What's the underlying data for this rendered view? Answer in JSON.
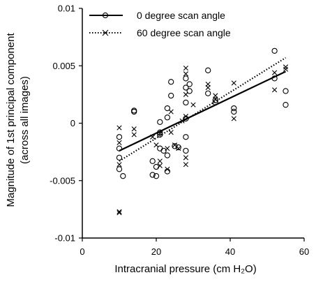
{
  "chart_data": {
    "type": "scatter",
    "xlabel": "Intracranial pressure (cm H₂O)",
    "ylabel": "Magnitude of 1st principal component",
    "ylabel2": "(across all images)",
    "xlim": [
      0,
      60
    ],
    "ylim": [
      -0.01,
      0.01
    ],
    "xticks": [
      0,
      20,
      40,
      60
    ],
    "yticks": [
      -0.01,
      -0.005,
      0,
      0.005,
      0.01
    ],
    "ytick_labels": [
      "-0.01",
      "-0.005",
      "0",
      "0.005",
      "0.01"
    ],
    "legend_position": "top-left",
    "grid": false,
    "series": [
      {
        "name": "0 degree scan angle",
        "marker": "circle",
        "line_style": "solid",
        "trendline": [
          [
            10,
            -0.0024
          ],
          [
            55,
            0.0045
          ]
        ],
        "points": [
          [
            10,
            -0.0012
          ],
          [
            10,
            -0.0022
          ],
          [
            10,
            -0.003
          ],
          [
            10,
            -0.004
          ],
          [
            11,
            -0.0046
          ],
          [
            14,
            0.0011
          ],
          [
            14,
            0.001
          ],
          [
            19,
            -0.0033
          ],
          [
            19,
            -0.0045
          ],
          [
            20,
            -0.0038
          ],
          [
            21,
            -0.001
          ],
          [
            21,
            -0.0022
          ],
          [
            21,
            0.0001
          ],
          [
            21,
            -0.0008
          ],
          [
            20,
            -0.0046
          ],
          [
            22,
            -0.0024
          ],
          [
            23,
            0.0005
          ],
          [
            23,
            0.0013
          ],
          [
            24,
            0.0024
          ],
          [
            24,
            0.0036
          ],
          [
            23,
            -0.0042
          ],
          [
            23,
            -0.0028
          ],
          [
            25,
            -0.002
          ],
          [
            26,
            -0.0021
          ],
          [
            28,
            0.0039
          ],
          [
            28,
            0.0031
          ],
          [
            28,
            0.0018
          ],
          [
            28,
            -0.0012
          ],
          [
            28,
            -0.0024
          ],
          [
            28,
            0.0004
          ],
          [
            29,
            0.0028
          ],
          [
            29,
            0.0034
          ],
          [
            34,
            0.0046
          ],
          [
            34,
            0.0026
          ],
          [
            36,
            0.002
          ],
          [
            36,
            0.0018
          ],
          [
            41,
            0.001
          ],
          [
            41,
            0.0013
          ],
          [
            52,
            0.0063
          ],
          [
            52,
            0.0039
          ],
          [
            55,
            0.0028
          ],
          [
            55,
            0.0016
          ]
        ]
      },
      {
        "name": "60 degree scan angle",
        "marker": "x",
        "line_style": "dotted",
        "trendline": [
          [
            10,
            -0.0033
          ],
          [
            55,
            0.0057
          ]
        ],
        "points": [
          [
            10,
            -0.0004
          ],
          [
            10,
            -0.0017
          ],
          [
            10,
            -0.0078
          ],
          [
            10,
            -0.0077
          ],
          [
            10,
            -0.0036
          ],
          [
            14,
            -0.0005
          ],
          [
            14,
            -0.001
          ],
          [
            19,
            -0.0012
          ],
          [
            20,
            -0.0019
          ],
          [
            21,
            -0.0009
          ],
          [
            21,
            -0.0033
          ],
          [
            21,
            -0.0037
          ],
          [
            23,
            -0.0022
          ],
          [
            23,
            -0.004
          ],
          [
            24,
            -0.0008
          ],
          [
            24,
            0.001
          ],
          [
            25,
            -0.0019
          ],
          [
            26,
            -0.0022
          ],
          [
            27,
            0.0002
          ],
          [
            28,
            0.0048
          ],
          [
            28,
            0.0043
          ],
          [
            28,
            0.0025
          ],
          [
            28,
            0.0006
          ],
          [
            28,
            -0.003
          ],
          [
            28,
            -0.0036
          ],
          [
            30,
            0.0016
          ],
          [
            34,
            0.0034
          ],
          [
            34,
            0.0031
          ],
          [
            36,
            0.0024
          ],
          [
            36,
            0.0021
          ],
          [
            41,
            0.0035
          ],
          [
            41,
            0.0004
          ],
          [
            52,
            0.0044
          ],
          [
            52,
            0.0029
          ],
          [
            55,
            0.0049
          ],
          [
            55,
            0.0047
          ]
        ]
      }
    ]
  }
}
